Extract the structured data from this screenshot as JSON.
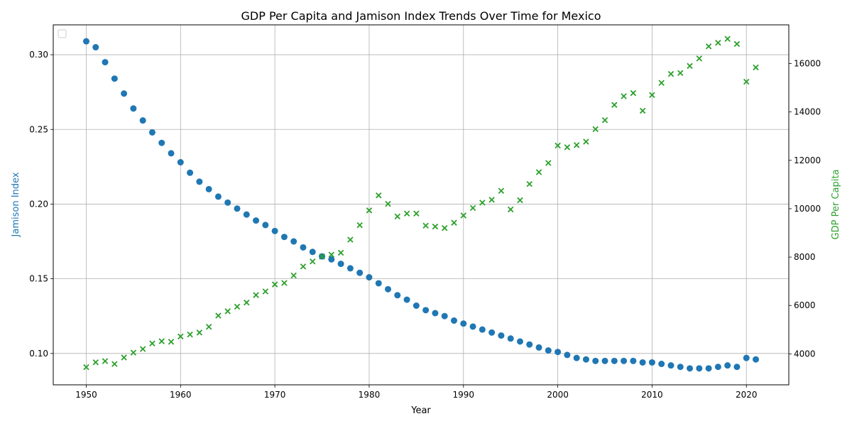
{
  "chart_data": {
    "type": "scatter",
    "title": "GDP Per Capita and Jamison Index Trends Over Time for Mexico",
    "xlabel": "Year",
    "ylabel_left": "Jamison Index",
    "ylabel_right": "GDP Per Capita",
    "xlim": [
      1946.5,
      2024.5
    ],
    "ylim_left": [
      0.079,
      0.32
    ],
    "ylim_right": [
      2720,
      17600
    ],
    "x_ticks": [
      1950,
      1960,
      1970,
      1980,
      1990,
      2000,
      2010,
      2020
    ],
    "y_ticks_left": [
      0.1,
      0.15,
      0.2,
      0.25,
      0.3
    ],
    "y_ticks_right": [
      4000,
      6000,
      8000,
      10000,
      12000,
      14000,
      16000
    ],
    "grid": true,
    "legend": "top-left (empty)",
    "x": [
      1950,
      1951,
      1952,
      1953,
      1954,
      1955,
      1956,
      1957,
      1958,
      1959,
      1960,
      1961,
      1962,
      1963,
      1964,
      1965,
      1966,
      1967,
      1968,
      1969,
      1970,
      1971,
      1972,
      1973,
      1974,
      1975,
      1976,
      1977,
      1978,
      1979,
      1980,
      1981,
      1982,
      1983,
      1984,
      1985,
      1986,
      1987,
      1988,
      1989,
      1990,
      1991,
      1992,
      1993,
      1994,
      1995,
      1996,
      1997,
      1998,
      1999,
      2000,
      2001,
      2002,
      2003,
      2004,
      2005,
      2006,
      2007,
      2008,
      2009,
      2010,
      2011,
      2012,
      2013,
      2014,
      2015,
      2016,
      2017,
      2018,
      2019,
      2020,
      2021
    ],
    "series": [
      {
        "name": "Jamison Index",
        "axis": "left",
        "marker": "circle",
        "color": "#1f77b4",
        "values": [
          0.309,
          0.305,
          0.295,
          0.284,
          0.274,
          0.264,
          0.256,
          0.248,
          0.241,
          0.234,
          0.228,
          0.221,
          0.215,
          0.21,
          0.205,
          0.201,
          0.197,
          0.193,
          0.189,
          0.186,
          0.182,
          0.178,
          0.175,
          0.171,
          0.168,
          0.165,
          0.163,
          0.16,
          0.157,
          0.154,
          0.151,
          0.147,
          0.143,
          0.139,
          0.136,
          0.132,
          0.129,
          0.127,
          0.125,
          0.122,
          0.12,
          0.118,
          0.116,
          0.114,
          0.112,
          0.11,
          0.108,
          0.106,
          0.104,
          0.102,
          0.101,
          0.099,
          0.097,
          0.096,
          0.095,
          0.095,
          0.095,
          0.095,
          0.095,
          0.094,
          0.094,
          0.093,
          0.092,
          0.091,
          0.09,
          0.09,
          0.09,
          0.091,
          0.092,
          0.091,
          0.097,
          0.096
        ]
      },
      {
        "name": "GDP Per Capita",
        "axis": "right",
        "marker": "x",
        "color": "#2ca02c",
        "values": [
          3450,
          3650,
          3700,
          3580,
          3850,
          4050,
          4200,
          4430,
          4520,
          4500,
          4720,
          4800,
          4880,
          5120,
          5580,
          5760,
          5950,
          6120,
          6430,
          6580,
          6870,
          6930,
          7240,
          7610,
          7820,
          8020,
          8100,
          8180,
          8720,
          9320,
          9930,
          10550,
          10200,
          9680,
          9800,
          9800,
          9300,
          9260,
          9200,
          9420,
          9720,
          10030,
          10250,
          10370,
          10740,
          9970,
          10350,
          11020,
          11510,
          11890,
          12610,
          12540,
          12630,
          12770,
          13290,
          13660,
          14290,
          14650,
          14780,
          14050,
          14700,
          15200,
          15570,
          15610,
          15900,
          16210,
          16710,
          16860,
          17020,
          16810,
          15250,
          15840
        ]
      }
    ]
  }
}
